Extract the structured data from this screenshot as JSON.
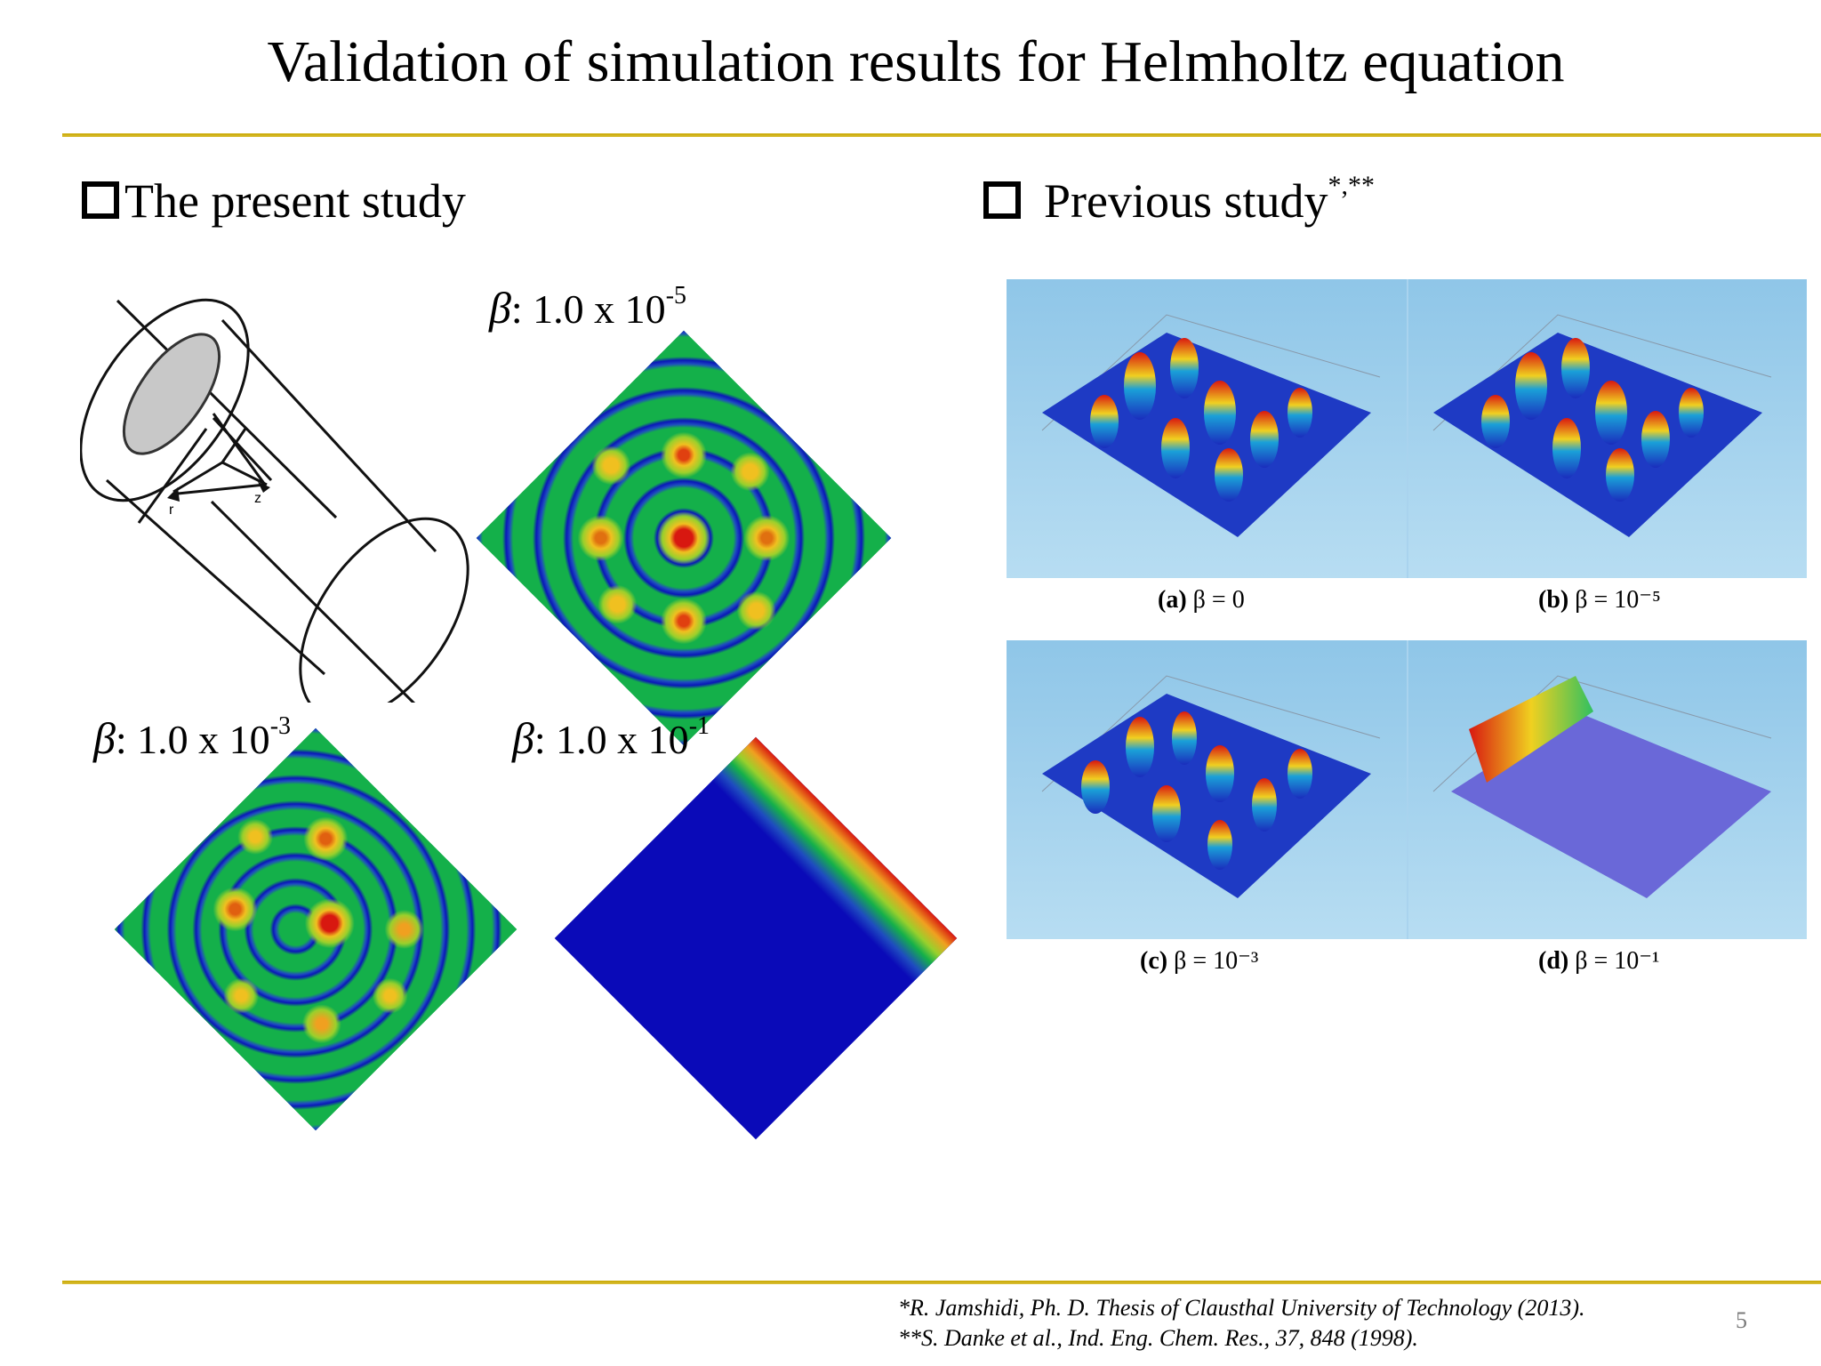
{
  "title": "Validation of simulation results for Helmholtz equation",
  "present": {
    "heading": "The present study",
    "maps": [
      {
        "beta_prefix": "β",
        "beta_text": ": 1.0 x 10",
        "beta_exp": "-5"
      },
      {
        "beta_prefix": "β",
        "beta_text": ": 1.0 x 10",
        "beta_exp": "-3"
      },
      {
        "beta_prefix": "β",
        "beta_text": ": 1.0 x 10",
        "beta_exp": "-1"
      }
    ]
  },
  "previous": {
    "heading": "Previous study",
    "heading_sup": "*,**",
    "panels": [
      {
        "letter": "(a)",
        "label": " β = 0"
      },
      {
        "letter": "(b)",
        "label": " β = 10⁻⁵"
      },
      {
        "letter": "(c)",
        "label": " β = 10⁻³"
      },
      {
        "letter": "(d)",
        "label": " β = 10⁻¹"
      }
    ]
  },
  "references": [
    "*R. Jamshidi, Ph. D. Thesis of Clausthal University of Technology (2013).",
    "**S. Danke et al., Ind. Eng. Chem. Res., 37, 848 (1998)."
  ],
  "page_number": "5",
  "colors": {
    "rule": "#c9a800",
    "field_low": "#0a18b8",
    "field_mid": "#14b04a",
    "field_high": "#d81810",
    "panel_sky": "#9ccdea"
  }
}
